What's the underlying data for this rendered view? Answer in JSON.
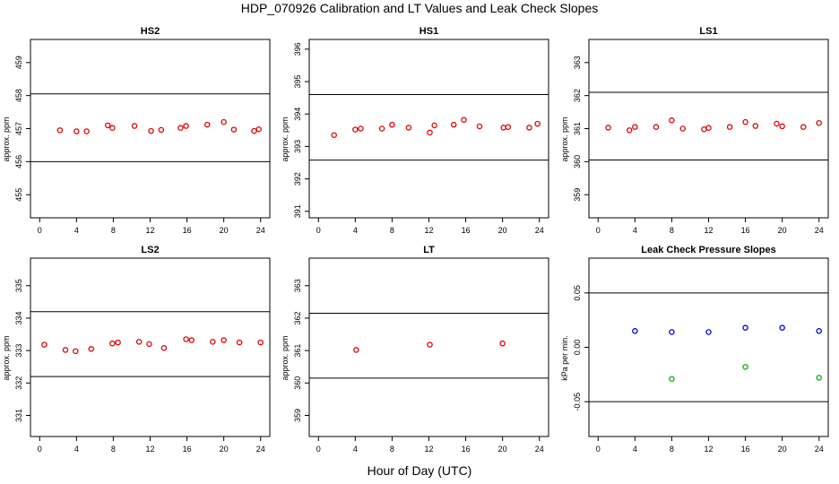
{
  "page": {
    "title": "HDP_070926  Calibration and LT Values and Leak Check Slopes",
    "xlabel": "Hour of Day (UTC)"
  },
  "chart_data": [
    {
      "type": "scatter",
      "title": "HS2",
      "ylabel": "approx. ppm",
      "xlim": [
        -1,
        25
      ],
      "ylim": [
        454.3,
        459.7
      ],
      "xticks": [
        0,
        4,
        8,
        12,
        16,
        20,
        24
      ],
      "yticks": [
        455,
        456,
        457,
        458,
        459
      ],
      "reference_lines": [
        456.0,
        458.05
      ],
      "series": [
        {
          "color": "#e00000",
          "x": [
            2.2,
            4.0,
            5.1,
            7.4,
            7.9,
            10.3,
            12.1,
            13.2,
            15.3,
            15.9,
            18.2,
            20.0,
            21.1,
            23.3,
            23.8
          ],
          "y": [
            456.95,
            456.92,
            456.92,
            457.1,
            457.02,
            457.08,
            456.93,
            456.96,
            457.02,
            457.08,
            457.12,
            457.2,
            456.97,
            456.93,
            456.98
          ]
        }
      ]
    },
    {
      "type": "scatter",
      "title": "HS1",
      "ylabel": "approx. ppm",
      "xlim": [
        -1,
        25
      ],
      "ylim": [
        390.8,
        396.3
      ],
      "xticks": [
        0,
        4,
        8,
        12,
        16,
        20,
        24
      ],
      "yticks": [
        391,
        392,
        393,
        394,
        395,
        396
      ],
      "reference_lines": [
        392.58,
        394.6
      ],
      "series": [
        {
          "color": "#e00000",
          "x": [
            1.7,
            4.0,
            4.6,
            6.9,
            8.0,
            9.8,
            12.1,
            12.6,
            14.7,
            15.8,
            17.5,
            20.1,
            20.6,
            22.9,
            23.8
          ],
          "y": [
            393.35,
            393.52,
            393.55,
            393.55,
            393.67,
            393.58,
            393.43,
            393.65,
            393.67,
            393.82,
            393.62,
            393.58,
            393.6,
            393.58,
            393.7
          ]
        }
      ]
    },
    {
      "type": "scatter",
      "title": "LS1",
      "ylabel": "approx. ppm",
      "xlim": [
        -1,
        25
      ],
      "ylim": [
        358.3,
        363.7
      ],
      "xticks": [
        0,
        4,
        8,
        12,
        16,
        20,
        24
      ],
      "yticks": [
        359,
        360,
        361,
        362,
        363
      ],
      "reference_lines": [
        360.05,
        362.1
      ],
      "series": [
        {
          "color": "#e00000",
          "x": [
            1.1,
            3.4,
            4.0,
            6.3,
            8.0,
            9.2,
            11.5,
            12.0,
            14.3,
            16.0,
            17.1,
            19.4,
            20.0,
            22.3,
            24.0
          ],
          "y": [
            361.03,
            360.95,
            361.05,
            361.05,
            361.25,
            361.0,
            360.98,
            361.02,
            361.05,
            361.2,
            361.08,
            361.15,
            361.07,
            361.05,
            361.17
          ]
        }
      ]
    },
    {
      "type": "scatter",
      "title": "LS2",
      "ylabel": "approx. ppm",
      "xlim": [
        -1,
        25
      ],
      "ylim": [
        330.35,
        335.85
      ],
      "xticks": [
        0,
        4,
        8,
        12,
        16,
        20,
        24
      ],
      "yticks": [
        331,
        332,
        333,
        334,
        335
      ],
      "reference_lines": [
        332.2,
        334.2
      ],
      "series": [
        {
          "color": "#e00000",
          "x": [
            0.5,
            2.8,
            3.9,
            5.6,
            7.9,
            8.5,
            10.8,
            11.9,
            13.5,
            15.9,
            16.5,
            18.8,
            20.0,
            21.7,
            24.0
          ],
          "y": [
            333.18,
            333.02,
            332.98,
            333.05,
            333.22,
            333.25,
            333.27,
            333.2,
            333.08,
            333.35,
            333.32,
            333.27,
            333.32,
            333.25,
            333.25
          ]
        }
      ]
    },
    {
      "type": "scatter",
      "title": "LT",
      "ylabel": "approx. ppm",
      "xlim": [
        -1,
        25
      ],
      "ylim": [
        358.35,
        363.85
      ],
      "xticks": [
        0,
        4,
        8,
        12,
        16,
        20,
        24
      ],
      "yticks": [
        359,
        360,
        361,
        362,
        363
      ],
      "reference_lines": [
        360.15,
        362.15
      ],
      "series": [
        {
          "color": "#e00000",
          "x": [
            4.1,
            12.1,
            20.0
          ],
          "y": [
            361.02,
            361.18,
            361.22
          ]
        }
      ]
    },
    {
      "type": "scatter",
      "title": "Leak Check Pressure Slopes",
      "ylabel": "kPa per min.",
      "xlim": [
        -1,
        25
      ],
      "ylim": [
        -0.082,
        0.082
      ],
      "xticks": [
        0,
        4,
        8,
        12,
        16,
        20,
        24
      ],
      "yticks": [
        -0.05,
        0.0,
        0.05
      ],
      "ytick_labels": [
        "-0.05",
        "0.00",
        "0.05"
      ],
      "reference_lines": [
        -0.05,
        0.05
      ],
      "series": [
        {
          "color": "#0000e0",
          "x": [
            4.0,
            8.0,
            12.0,
            16.0,
            20.0,
            24.0
          ],
          "y": [
            0.015,
            0.014,
            0.014,
            0.018,
            0.018,
            0.015
          ]
        },
        {
          "color": "#00b000",
          "x": [
            8.0,
            16.0,
            24.0
          ],
          "y": [
            -0.029,
            -0.018,
            -0.028
          ]
        }
      ]
    }
  ]
}
